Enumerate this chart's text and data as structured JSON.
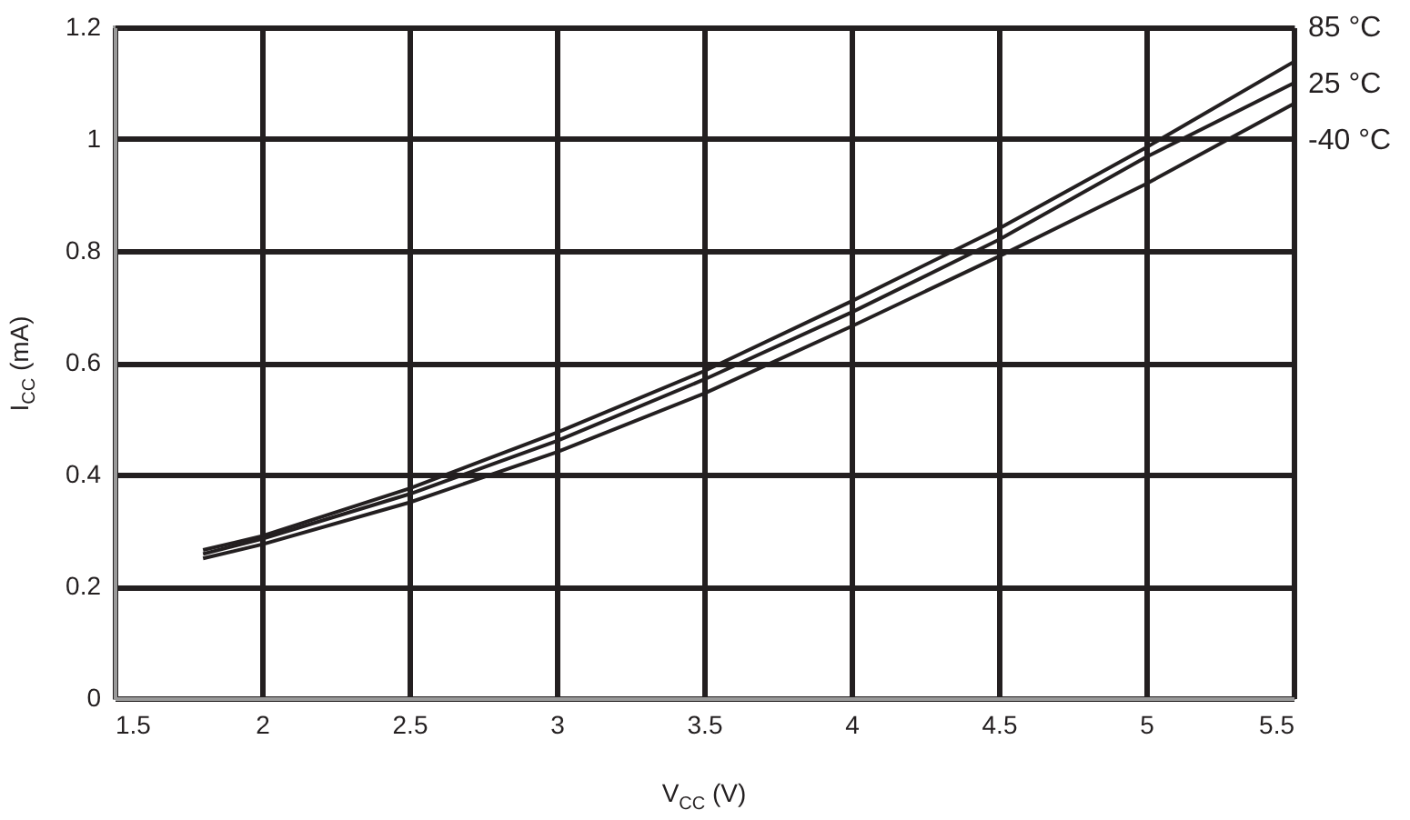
{
  "chart_data": {
    "type": "line",
    "xlabel": "V$_{CC}$ (V)",
    "ylabel": "I$_{CC}$ (mA)",
    "x": [
      1.8,
      2,
      2.5,
      3,
      3.5,
      4,
      4.5,
      5,
      5.5
    ],
    "series": [
      {
        "name": "85 °C",
        "color": "#231f20",
        "values": [
          0.265,
          0.29,
          0.375,
          0.475,
          0.585,
          0.71,
          0.84,
          0.985,
          1.138
        ]
      },
      {
        "name": "25 °C",
        "color": "#231f20",
        "values": [
          0.258,
          0.285,
          0.365,
          0.46,
          0.57,
          0.69,
          0.82,
          0.968,
          1.1
        ]
      },
      {
        "name": "-40 °C",
        "color": "#231f20",
        "values": [
          0.25,
          0.275,
          0.35,
          0.44,
          0.545,
          0.665,
          0.79,
          0.92,
          1.063
        ]
      }
    ],
    "xlim": [
      1.5,
      5.5
    ],
    "xticks": [
      1.5,
      2,
      2.5,
      3,
      3.5,
      4,
      4.5,
      5,
      5.5
    ],
    "ylim": [
      0,
      1.2
    ],
    "yticks": [
      0,
      0.2,
      0.4,
      0.6,
      0.8,
      1,
      1.2
    ],
    "grid": true,
    "marker": "none",
    "line_style": "solid"
  }
}
